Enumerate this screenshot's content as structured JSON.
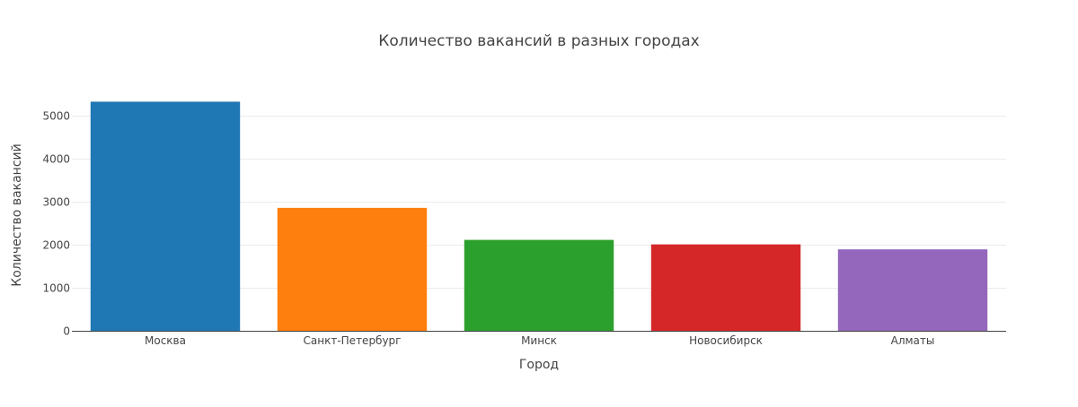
{
  "chart_data": {
    "type": "bar",
    "title": "Количество вакансий в разных городах",
    "xlabel": "Город",
    "ylabel": "Количество вакансий",
    "categories": [
      "Москва",
      "Санкт-Петербург",
      "Минск",
      "Новосибирск",
      "Алматы"
    ],
    "values": [
      5330,
      2860,
      2115,
      2010,
      1895
    ],
    "colors": [
      "#1f77b4",
      "#ff7f0e",
      "#2ca02c",
      "#d62728",
      "#9467bd"
    ],
    "ylim": [
      0,
      5610
    ],
    "yticks": [
      0,
      1000,
      2000,
      3000,
      4000,
      5000
    ],
    "grid": true,
    "legend": "none"
  }
}
